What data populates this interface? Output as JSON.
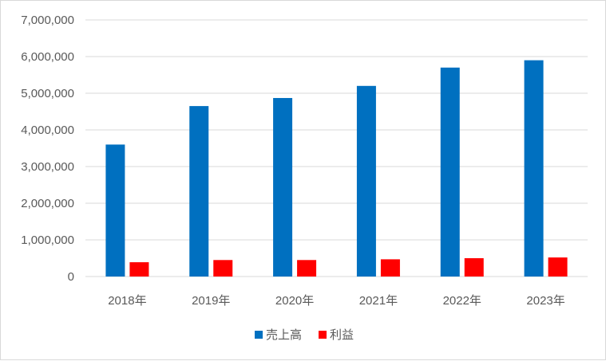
{
  "chart_data": {
    "type": "bar",
    "title": "",
    "xlabel": "",
    "ylabel": "",
    "categories": [
      "2018年",
      "2019年",
      "2020年",
      "2021年",
      "2022年",
      "2023年"
    ],
    "series": [
      {
        "name": "売上高",
        "color": "#0070c0",
        "values": [
          3600000,
          4650000,
          4870000,
          5200000,
          5700000,
          5900000
        ]
      },
      {
        "name": "利益",
        "color": "#ff0000",
        "values": [
          390000,
          450000,
          450000,
          470000,
          500000,
          520000
        ]
      }
    ],
    "ylim": [
      0,
      7000000
    ],
    "yticks": [
      "0",
      "1,000,000",
      "2,000,000",
      "3,000,000",
      "4,000,000",
      "5,000,000",
      "6,000,000",
      "7,000,000"
    ],
    "grid": true,
    "legend_position": "bottom"
  }
}
